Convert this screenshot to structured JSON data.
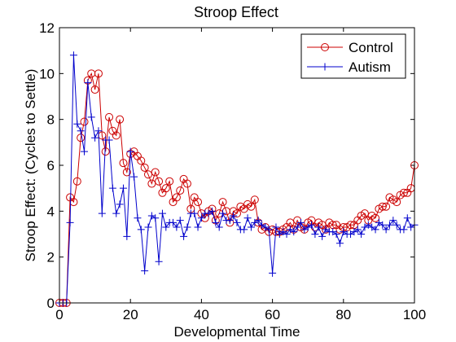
{
  "chart_data": {
    "type": "line",
    "title": "Stroop Effect",
    "xlabel": "Developmental Time",
    "ylabel": "Stroop Effect: (Cycles to Settle)",
    "xlim": [
      0,
      100
    ],
    "ylim": [
      0,
      12
    ],
    "xticks": [
      0,
      20,
      40,
      60,
      80,
      100
    ],
    "yticks": [
      0,
      2,
      4,
      6,
      8,
      10,
      12
    ],
    "grid": false,
    "legend": "top-right",
    "series": [
      {
        "name": "Control",
        "color": "#cc0000",
        "marker": "circle",
        "x": [
          0,
          1,
          2,
          3,
          4,
          5,
          6,
          7,
          8,
          9,
          10,
          11,
          12,
          13,
          14,
          15,
          16,
          17,
          18,
          19,
          20,
          21,
          22,
          23,
          24,
          25,
          26,
          27,
          28,
          29,
          30,
          31,
          32,
          33,
          34,
          35,
          36,
          37,
          38,
          39,
          40,
          41,
          42,
          43,
          44,
          45,
          46,
          47,
          48,
          49,
          50,
          51,
          52,
          53,
          54,
          55,
          56,
          57,
          58,
          59,
          60,
          61,
          62,
          63,
          64,
          65,
          66,
          67,
          68,
          69,
          70,
          71,
          72,
          73,
          74,
          75,
          76,
          77,
          78,
          79,
          80,
          81,
          82,
          83,
          84,
          85,
          86,
          87,
          88,
          89,
          90,
          91,
          92,
          93,
          94,
          95,
          96,
          97,
          98,
          99,
          100
        ],
        "y": [
          0,
          0,
          0,
          4.6,
          4.4,
          5.3,
          7.2,
          7.9,
          9.7,
          10.0,
          9.3,
          10.0,
          7.3,
          6.6,
          8.1,
          7.5,
          7.3,
          8.0,
          6.1,
          5.7,
          6.5,
          6.6,
          6.4,
          6.2,
          5.9,
          5.6,
          5.2,
          5.7,
          5.3,
          4.8,
          5.0,
          5.3,
          4.4,
          4.6,
          4.9,
          5.4,
          5.2,
          4.1,
          4.6,
          4.4,
          3.9,
          3.7,
          4.0,
          4.1,
          3.6,
          3.9,
          4.4,
          4.0,
          3.5,
          4.0,
          3.9,
          4.2,
          4.1,
          4.3,
          4.2,
          4.5,
          3.5,
          3.2,
          3.3,
          3.1,
          3.2,
          3.1,
          3.1,
          3.2,
          3.3,
          3.5,
          3.2,
          3.6,
          3.3,
          3.2,
          3.5,
          3.6,
          3.3,
          3.5,
          3.4,
          3.2,
          3.5,
          3.4,
          3.4,
          3.2,
          3.3,
          3.3,
          3.4,
          3.4,
          3.6,
          3.8,
          3.9,
          3.6,
          3.8,
          3.7,
          4.1,
          4.2,
          4.2,
          4.6,
          4.5,
          4.4,
          4.7,
          4.8,
          4.8,
          5.0,
          6.0
        ]
      },
      {
        "name": "Autism",
        "color": "#0000cc",
        "marker": "plus",
        "x": [
          0,
          1,
          2,
          3,
          4,
          5,
          6,
          7,
          8,
          9,
          10,
          11,
          12,
          13,
          14,
          15,
          16,
          17,
          18,
          19,
          20,
          21,
          22,
          23,
          24,
          25,
          26,
          27,
          28,
          29,
          30,
          31,
          32,
          33,
          34,
          35,
          36,
          37,
          38,
          39,
          40,
          41,
          42,
          43,
          44,
          45,
          46,
          47,
          48,
          49,
          50,
          51,
          52,
          53,
          54,
          55,
          56,
          57,
          58,
          59,
          60,
          61,
          62,
          63,
          64,
          65,
          66,
          67,
          68,
          69,
          70,
          71,
          72,
          73,
          74,
          75,
          76,
          77,
          78,
          79,
          80,
          81,
          82,
          83,
          84,
          85,
          86,
          87,
          88,
          89,
          90,
          91,
          92,
          93,
          94,
          95,
          96,
          97,
          98,
          99,
          100
        ],
        "y": [
          0,
          0,
          0,
          3.5,
          10.8,
          7.8,
          7.5,
          6.6,
          9.6,
          8.1,
          7.2,
          7.5,
          3.9,
          7.1,
          7.1,
          5.0,
          3.9,
          4.3,
          5.0,
          2.9,
          6.6,
          5.5,
          3.7,
          3.2,
          1.4,
          3.3,
          3.8,
          3.7,
          1.8,
          3.9,
          3.3,
          3.5,
          3.5,
          3.3,
          3.6,
          2.9,
          3.3,
          3.9,
          3.9,
          3.3,
          3.7,
          3.9,
          3.9,
          4.0,
          3.5,
          3.3,
          3.9,
          3.6,
          3.6,
          3.8,
          3.5,
          3.2,
          3.2,
          3.7,
          3.3,
          3.5,
          3.6,
          3.4,
          3.3,
          3.2,
          1.3,
          3.3,
          3.0,
          3.1,
          3.0,
          3.2,
          3.1,
          3.3,
          3.5,
          3.2,
          3.3,
          3.4,
          3.0,
          3.3,
          2.9,
          3.2,
          3.1,
          3.1,
          3.0,
          2.6,
          3.1,
          3.0,
          3.0,
          3.1,
          3.2,
          3.0,
          3.3,
          3.4,
          3.3,
          3.2,
          3.5,
          3.4,
          3.2,
          3.4,
          3.6,
          3.4,
          3.2,
          3.2,
          3.7,
          3.3,
          3.4
        ]
      }
    ]
  }
}
